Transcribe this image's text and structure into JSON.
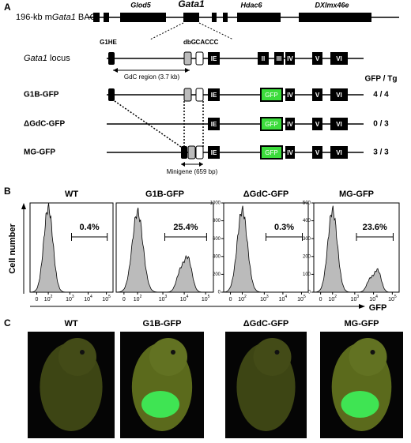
{
  "panel_labels": [
    "A",
    "B",
    "C"
  ],
  "panel_a": {
    "bac_prefix": "196-kb m",
    "bac_gene": "Gata1",
    "bac_suffix": " BAC",
    "genes": [
      "Glod5",
      "Gata1",
      "Hdac6",
      "DXImx46e"
    ],
    "locus_gene": "Gata1",
    "locus_suffix": " locus",
    "elements": [
      "G1HE",
      "dbG",
      "CACCC"
    ],
    "gdc_region": "GdC region (3.7 kb)",
    "exons": [
      "IE",
      "II",
      "III",
      "IV",
      "V",
      "VI"
    ],
    "gfp_box": "GFP",
    "ratio_header": "GFP / Tg",
    "constructs": [
      {
        "name": "G1B-GFP",
        "ratio": "4 / 4"
      },
      {
        "name": "ΔGdC-GFP",
        "ratio": "0 / 3"
      },
      {
        "name": "MG-GFP",
        "ratio": "3 / 3"
      }
    ],
    "minigene": "Minigene (659 bp)"
  },
  "panel_b": {
    "y_label": "Cell number",
    "x_label": "GFP",
    "x_ticks": [
      {
        "base": "0"
      },
      {
        "base": "10",
        "exp": "2"
      },
      {
        "base": "10",
        "exp": "3"
      },
      {
        "base": "10",
        "exp": "4"
      },
      {
        "base": "10",
        "exp": "5"
      }
    ],
    "plots": [
      {
        "title": "WT",
        "gate": "0.4%"
      },
      {
        "title": "G1B-GFP",
        "gate": "25.4%"
      },
      {
        "title": "ΔGdC-GFP",
        "gate": "0.3%",
        "yticks": [
          0,
          200,
          400,
          600,
          800,
          1000
        ]
      },
      {
        "title": "MG-GFP",
        "gate": "23.6%",
        "yticks": [
          0,
          100,
          200,
          300,
          400,
          500
        ]
      }
    ]
  },
  "panel_c": {
    "titles": [
      "WT",
      "G1B-GFP",
      "ΔGdC-GFP",
      "MG-GFP"
    ]
  }
}
